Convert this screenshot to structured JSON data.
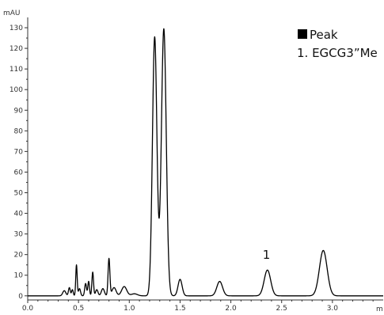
{
  "chart_data": {
    "type": "line",
    "title": "",
    "xlabel": "",
    "ylabel": "mAU",
    "xunit_visible": "m",
    "xlim": [
      0,
      35
    ],
    "ylim": [
      -2,
      135
    ],
    "x_ticks": [
      0,
      5,
      10,
      15,
      20,
      25,
      30
    ],
    "x_tick_labels": [
      "0.0",
      "0.5",
      "1.0",
      "1.5",
      "2.0",
      "2.5",
      "3.0"
    ],
    "y_ticks": [
      0,
      10,
      20,
      30,
      40,
      50,
      60,
      70,
      80,
      90,
      100,
      110,
      120,
      130
    ],
    "y_tick_labels": [
      "0",
      "10",
      "20",
      "30",
      "40",
      "50",
      "60",
      "70",
      "80",
      "90",
      "100",
      "110",
      "120",
      "130"
    ],
    "grid": false,
    "legend": {
      "placement": "top-right",
      "title": "Peak",
      "entries": [
        "1. EGCG3”Me"
      ]
    },
    "annotations": [
      {
        "text": "1",
        "x": 23.5,
        "y": 18
      }
    ],
    "baseline": 0,
    "series": [
      {
        "color": "#000000",
        "peaks": [
          {
            "rt": 3.6,
            "height": 2.5,
            "sigma": 0.15
          },
          {
            "rt": 4.1,
            "height": 4.0,
            "sigma": 0.09
          },
          {
            "rt": 4.4,
            "height": 3.0,
            "sigma": 0.08
          },
          {
            "rt": 4.8,
            "height": 15.0,
            "sigma": 0.07
          },
          {
            "rt": 5.1,
            "height": 3.5,
            "sigma": 0.1
          },
          {
            "rt": 5.7,
            "height": 6.0,
            "sigma": 0.09
          },
          {
            "rt": 6.0,
            "height": 7.0,
            "sigma": 0.08
          },
          {
            "rt": 6.4,
            "height": 11.5,
            "sigma": 0.08
          },
          {
            "rt": 6.8,
            "height": 3.0,
            "sigma": 0.12
          },
          {
            "rt": 7.4,
            "height": 3.5,
            "sigma": 0.15
          },
          {
            "rt": 8.0,
            "height": 18.0,
            "sigma": 0.09
          },
          {
            "rt": 8.5,
            "height": 4.0,
            "sigma": 0.2
          },
          {
            "rt": 9.5,
            "height": 4.5,
            "sigma": 0.25
          },
          {
            "rt": 10.5,
            "height": 1.0,
            "sigma": 0.3
          },
          {
            "rt": 12.5,
            "height": 125.5,
            "sigma": 0.22
          },
          {
            "rt": 13.4,
            "height": 129.5,
            "sigma": 0.24
          },
          {
            "rt": 15.0,
            "height": 8.0,
            "sigma": 0.2
          },
          {
            "rt": 18.9,
            "height": 7.0,
            "sigma": 0.28
          },
          {
            "rt": 23.6,
            "height": 12.5,
            "sigma": 0.32
          },
          {
            "rt": 29.1,
            "height": 22.0,
            "sigma": 0.38
          }
        ]
      }
    ]
  }
}
